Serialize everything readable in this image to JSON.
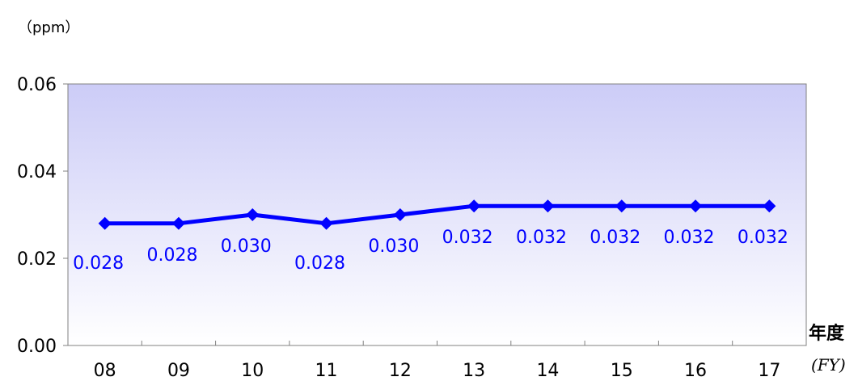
{
  "chart_data": {
    "type": "line",
    "unit_label": "（ppm）",
    "xlabel": "年度",
    "xlabel_en": "(FY)",
    "categories": [
      "08",
      "09",
      "10",
      "11",
      "12",
      "13",
      "14",
      "15",
      "16",
      "17"
    ],
    "series": [
      {
        "values": [
          0.028,
          0.028,
          0.03,
          0.028,
          0.03,
          0.032,
          0.032,
          0.032,
          0.032,
          0.032
        ],
        "labels": [
          "0.028",
          "0.028",
          "0.030",
          "0.028",
          "0.030",
          "0.032",
          "0.032",
          "0.032",
          "0.032",
          "0.032"
        ],
        "color": "#0000ff"
      }
    ],
    "yticks": [
      "0.00",
      "0.02",
      "0.04",
      "0.06"
    ],
    "ylim": [
      0,
      0.06
    ],
    "grid": false,
    "background_gradient": [
      "#ccccf7",
      "#ffffff"
    ]
  }
}
